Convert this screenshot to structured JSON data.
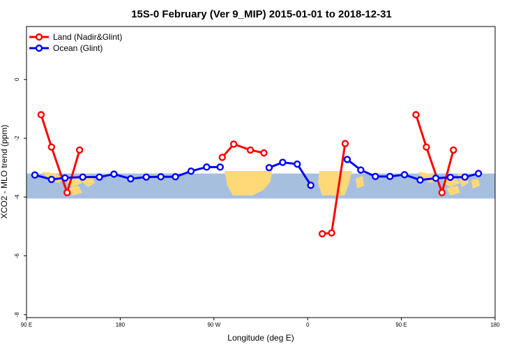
{
  "chart_data": {
    "type": "line",
    "title": "15S-0 February (Ver 9_MIP)   2015-01-01 to 2018-12-31",
    "xlabel": "Longitude (deg E)",
    "ylabel": "XCO2 - MLO trend (ppm)",
    "x_tick_values": [
      90,
      180,
      270,
      360,
      450,
      540
    ],
    "x_tick_labels": [
      "90 E",
      "180",
      "90 W",
      "0",
      "90 E",
      "180"
    ],
    "y_tick_values": [
      -8,
      -6,
      -4,
      -2,
      0
    ],
    "y_tick_labels": [
      "-8",
      "-6",
      "-4",
      "-2",
      "0"
    ],
    "xlim": [
      90,
      540
    ],
    "ylim": [
      -8.1,
      1.8
    ],
    "legend_position": "top-left",
    "background_map": {
      "band_ylim": [
        -4.05,
        -3.2
      ],
      "ocean_color": "#a7bfdf",
      "land_color": "#ffd977"
    },
    "series": [
      {
        "name": "Land (Nadir&Glint)",
        "color": "#ff0000",
        "segments": [
          [
            [
              104,
              -1.2
            ],
            [
              114,
              -2.3
            ],
            [
              129,
              -3.85
            ],
            [
              141,
              -2.4
            ]
          ],
          [
            [
              278,
              -2.65
            ],
            [
              289,
              -2.2
            ],
            [
              305,
              -2.4
            ],
            [
              318,
              -2.5
            ]
          ],
          [
            [
              374,
              -5.25
            ],
            [
              383,
              -5.22
            ],
            [
              396,
              -2.18
            ]
          ],
          [
            [
              464,
              -1.2
            ],
            [
              474,
              -2.3
            ],
            [
              489,
              -3.85
            ],
            [
              500,
              -2.4
            ]
          ]
        ]
      },
      {
        "name": "Ocean (Glint)",
        "color": "#0000ff",
        "segments": [
          [
            [
              98,
              -3.25
            ],
            [
              114,
              -3.4
            ],
            [
              127,
              -3.35
            ],
            [
              144,
              -3.32
            ],
            [
              160,
              -3.32
            ],
            [
              174,
              -3.22
            ],
            [
              190,
              -3.38
            ],
            [
              205,
              -3.32
            ],
            [
              219,
              -3.31
            ],
            [
              233,
              -3.31
            ],
            [
              248,
              -3.12
            ],
            [
              263,
              -2.98
            ],
            [
              276,
              -2.98
            ]
          ],
          [
            [
              323,
              -3.0
            ],
            [
              336,
              -2.82
            ],
            [
              350,
              -2.88
            ],
            [
              363,
              -3.6
            ]
          ],
          [
            [
              398,
              -2.72
            ],
            [
              411,
              -3.08
            ],
            [
              425,
              -3.3
            ],
            [
              439,
              -3.3
            ],
            [
              453,
              -3.24
            ],
            [
              468,
              -3.42
            ],
            [
              483,
              -3.36
            ],
            [
              497,
              -3.33
            ],
            [
              511,
              -3.32
            ],
            [
              524,
              -3.2
            ]
          ]
        ]
      }
    ]
  }
}
